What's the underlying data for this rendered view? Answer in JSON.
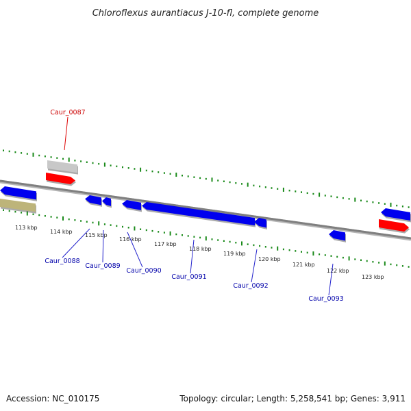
{
  "title": "Chloroflexus aurantiacus J-10-fl, complete genome",
  "footer": {
    "accession": "Accession: NC_010175",
    "summary": "Topology: circular; Length: 5,258,541 bp; Genes: 3,911"
  },
  "colors": {
    "backbone": "#7f7f7f",
    "tick": "#1a8a1a",
    "forward_cds": "#ff0000",
    "reverse_cds": "#0000ee",
    "rna": "#c8c8c8",
    "pseudo": "#bdb47a",
    "forward_label": "#cc0000",
    "reverse_label": "#0000aa"
  },
  "kbp_labels": [
    "113 kbp",
    "114 kbp",
    "115 kbp",
    "116 kbp",
    "117 kbp",
    "118 kbp",
    "119 kbp",
    "120 kbp",
    "121 kbp",
    "122 kbp",
    "123 kbp"
  ],
  "gene_labels": [
    {
      "name": "Caur_0087",
      "strand": "forward"
    },
    {
      "name": "Caur_0088",
      "strand": "reverse"
    },
    {
      "name": "Caur_0089",
      "strand": "reverse"
    },
    {
      "name": "Caur_0090",
      "strand": "reverse"
    },
    {
      "name": "Caur_0091",
      "strand": "reverse"
    },
    {
      "name": "Caur_0092",
      "strand": "reverse"
    },
    {
      "name": "Caur_0093",
      "strand": "reverse"
    }
  ]
}
